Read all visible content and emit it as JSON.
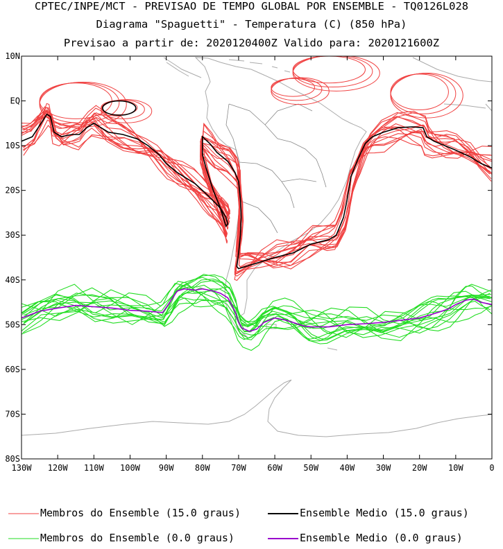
{
  "titles": {
    "line1": "CPTEC/INPE/MCT - PREVISAO DE TEMPO GLOBAL POR ENSEMBLE - TQ0126L028",
    "line2": "Diagrama \"Spaguetti\" - Temperatura (C) (850 hPa)",
    "line3": "Previsao a partir de: 2020120400Z  Valido para: 2020121600Z"
  },
  "chart_data": {
    "type": "line",
    "title": "Diagrama \"Spaguetti\" - Temperatura (C) (850 hPa)",
    "xlabel": "",
    "ylabel": "",
    "xlim": [
      -130,
      0
    ],
    "ylim": [
      -80,
      10
    ],
    "x_ticks": [
      -130,
      -120,
      -110,
      -100,
      -90,
      -80,
      -70,
      -60,
      -50,
      -40,
      -30,
      -20,
      -10,
      0
    ],
    "x_tick_labels": [
      "130W",
      "120W",
      "110W",
      "100W",
      "90W",
      "80W",
      "70W",
      "60W",
      "50W",
      "40W",
      "30W",
      "20W",
      "10W",
      "0"
    ],
    "y_ticks": [
      10,
      0,
      -10,
      -20,
      -30,
      -40,
      -50,
      -60,
      -70,
      -80
    ],
    "y_tick_labels": [
      "10N",
      "EQ",
      "10S",
      "20S",
      "30S",
      "40S",
      "50S",
      "60S",
      "70S",
      "80S"
    ],
    "colors": {
      "member15": "#f04040",
      "mean15": "#000000",
      "member0": "#22dd22",
      "mean0": "#9900cc",
      "coast": "#aaaaaa",
      "border": "#888888"
    },
    "series": [
      {
        "name": "Ensemble Medio (15.0 graus)",
        "lon": [
          -130,
          -127,
          -125,
          -123,
          -122,
          -121,
          -119,
          -116,
          -114,
          -112,
          -110,
          -108,
          -106,
          -102,
          -98,
          -95,
          -92,
          -90,
          -87,
          -85,
          -82,
          -80,
          -78,
          -75,
          -73.5,
          -73,
          -73.5,
          -75,
          -77,
          -79,
          -80,
          -80,
          -78,
          -76,
          -73,
          -71,
          -70,
          -69.5,
          -69.3,
          -69.5,
          -70,
          -70.5,
          -70,
          -68,
          -64,
          -60,
          -55,
          -50,
          -45,
          -43,
          -41,
          -40,
          -39,
          -37,
          -35,
          -33,
          -30,
          -26,
          -22,
          -19,
          -18,
          -16,
          -13,
          -10,
          -6,
          -3,
          0
        ],
        "lat": [
          -9,
          -8,
          -5.5,
          -3,
          -3.5,
          -7,
          -8,
          -7.5,
          -7.5,
          -6,
          -5,
          -6,
          -7,
          -7.5,
          -8.5,
          -10,
          -12,
          -14,
          -16,
          -17,
          -18.5,
          -20,
          -21.5,
          -24,
          -26,
          -27.5,
          -28,
          -24,
          -20,
          -15,
          -12,
          -8,
          -9.5,
          -11.5,
          -13.5,
          -16,
          -18,
          -22,
          -26,
          -30,
          -34,
          -37,
          -37.5,
          -37,
          -36,
          -35,
          -34,
          -32,
          -31,
          -30,
          -26,
          -22,
          -17,
          -13,
          -9.5,
          -8,
          -7,
          -6,
          -5.8,
          -6,
          -8,
          -9,
          -10,
          -11,
          -12.5,
          -14,
          -15
        ]
      },
      {
        "name": "Ensemble Medio (0.0 graus)",
        "lon": [
          -130,
          -125,
          -120,
          -115,
          -110,
          -105,
          -100,
          -95,
          -91,
          -89,
          -87,
          -85,
          -82,
          -80,
          -77,
          -75,
          -73,
          -71,
          -70,
          -69,
          -67,
          -65,
          -63,
          -60,
          -57,
          -55,
          -52,
          -50,
          -47,
          -45,
          -40,
          -35,
          -30,
          -25,
          -20,
          -17,
          -15,
          -12,
          -10,
          -7,
          -5,
          -3,
          0
        ],
        "lat": [
          -48.5,
          -47,
          -46.3,
          -45.7,
          -46,
          -46.3,
          -46.8,
          -47,
          -47.3,
          -45,
          -42.5,
          -42,
          -42.3,
          -42,
          -42.5,
          -43,
          -44,
          -47,
          -49.5,
          -50.8,
          -51.5,
          -51,
          -49.5,
          -48.5,
          -49,
          -49.5,
          -50.3,
          -50.5,
          -50.5,
          -50.5,
          -50,
          -49.8,
          -49.5,
          -49,
          -48.5,
          -47.8,
          -47.3,
          -46.5,
          -45.5,
          -44.5,
          -44.3,
          -45,
          -45.5
        ]
      }
    ],
    "legend": [
      {
        "label": "Membros do Ensemble (15.0 graus)",
        "kind": "member15"
      },
      {
        "label": "Ensemble Medio (15.0 graus)",
        "kind": "mean15"
      },
      {
        "label": "Membros do Ensemble (0.0 graus)",
        "kind": "member0"
      },
      {
        "label": "Ensemble Medio (0.0 graus)",
        "kind": "mean0"
      }
    ],
    "legend_position": "bottom"
  }
}
